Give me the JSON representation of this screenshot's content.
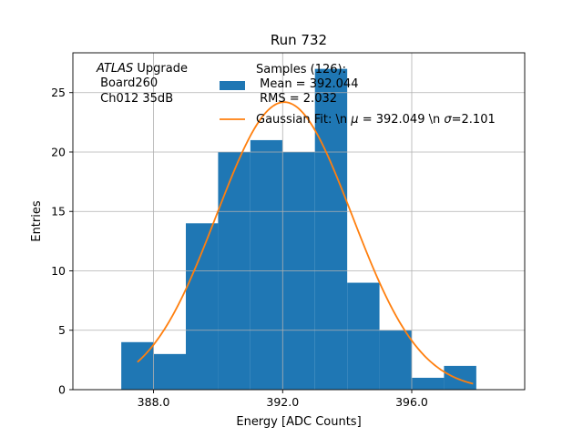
{
  "chart_data": {
    "type": "bar",
    "title": "Run 732",
    "xlabel": "Energy [ADC Counts]",
    "ylabel": "Entries",
    "xlim": [
      385.5,
      399.5
    ],
    "ylim": [
      0,
      28.35
    ],
    "xticks": [
      388.0,
      392.0,
      396.0
    ],
    "xtick_labels": [
      "388.0",
      "392.0",
      "396.0"
    ],
    "yticks": [
      0,
      5,
      10,
      15,
      20,
      25
    ],
    "ytick_labels": [
      "0",
      "5",
      "10",
      "15",
      "20",
      "25"
    ],
    "grid": true,
    "histogram": {
      "name": "Samples (126):\n Mean = 392.044\n RMS = 2.032",
      "color": "#1f77b4",
      "bins": [
        {
          "x0": 387,
          "x1": 388,
          "value": 4
        },
        {
          "x0": 388,
          "x1": 389,
          "value": 3
        },
        {
          "x0": 389,
          "x1": 390,
          "value": 14
        },
        {
          "x0": 390,
          "x1": 391,
          "value": 20
        },
        {
          "x0": 391,
          "x1": 392,
          "value": 21
        },
        {
          "x0": 392,
          "x1": 393,
          "value": 20
        },
        {
          "x0": 393,
          "x1": 394,
          "value": 27
        },
        {
          "x0": 394,
          "x1": 395,
          "value": 9
        },
        {
          "x0": 395,
          "x1": 396,
          "value": 5
        },
        {
          "x0": 396,
          "x1": 397,
          "value": 1
        },
        {
          "x0": 397,
          "x1": 398,
          "value": 2
        }
      ]
    },
    "fit": {
      "name": "Gaussian Fit: \\n μ = 392.049 \\n σ=2.101",
      "color": "#ff7f0e",
      "mu": 392.049,
      "sigma": 2.101,
      "amplitude": 24.2,
      "x_range": [
        387.5,
        397.9
      ]
    },
    "annotation_lines": [
      "ATLAS Upgrade",
      " Board260",
      " Ch012 35dB"
    ],
    "legend_position": "top-right"
  }
}
